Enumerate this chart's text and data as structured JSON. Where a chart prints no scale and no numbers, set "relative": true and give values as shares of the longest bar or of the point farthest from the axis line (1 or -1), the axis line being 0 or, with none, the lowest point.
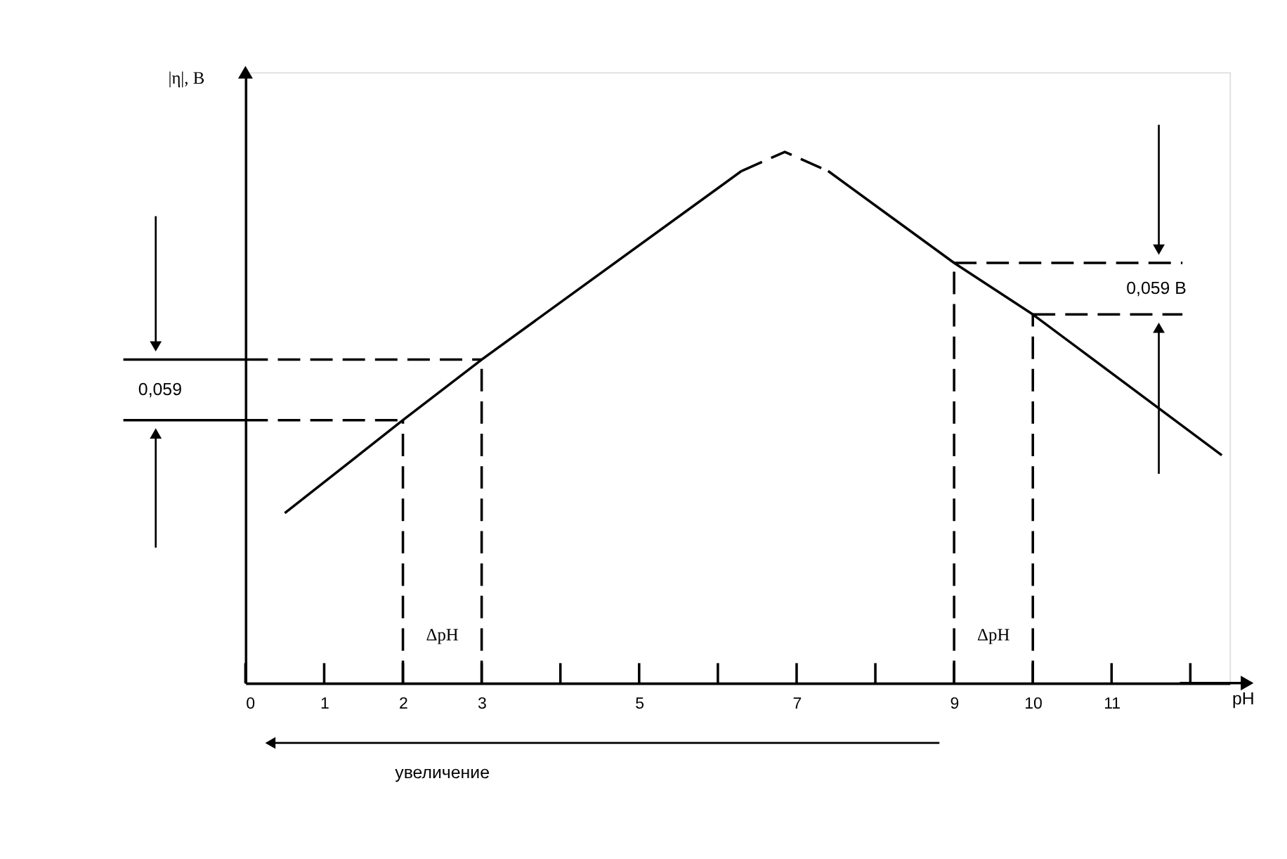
{
  "chart_data": {
    "type": "line",
    "relative": true,
    "xlabel": "pH",
    "ylabel": "|η|, В",
    "xlim": [
      0,
      12.5
    ],
    "xticks": [
      0,
      1,
      2,
      3,
      {
        "value": 4,
        "label": null
      },
      5,
      {
        "value": 6,
        "label": null
      },
      7,
      {
        "value": 8,
        "label": null
      },
      9,
      10,
      11,
      {
        "value": 12,
        "label": null
      }
    ],
    "grid": false,
    "marker": "none",
    "series": [
      {
        "color": "#000000",
        "line_style": "solid",
        "x": [
          0.5,
          2,
          3,
          6.3
        ],
        "values": [
          0.32,
          0.495,
          0.609,
          0.964
        ]
      },
      {
        "color": "#000000",
        "line_style": "dashed",
        "x": [
          6.3,
          6.85,
          7.4
        ],
        "values": [
          0.964,
          1.0,
          0.964
        ]
      },
      {
        "color": "#000000",
        "line_style": "solid",
        "x": [
          7.4,
          9,
          10,
          12.4
        ],
        "values": [
          0.964,
          0.791,
          0.694,
          0.429
        ]
      },
      {
        "color": "#000000",
        "line_style": "dashed",
        "x": [
          0,
          3
        ],
        "values": [
          0.609,
          0.609
        ]
      },
      {
        "color": "#000000",
        "line_style": "dashed",
        "x": [
          0,
          2
        ],
        "values": [
          0.495,
          0.495
        ]
      },
      {
        "color": "#000000",
        "line_style": "dashed",
        "x": [
          2,
          2
        ],
        "values": [
          0,
          0.495
        ]
      },
      {
        "color": "#000000",
        "line_style": "dashed",
        "x": [
          3,
          3
        ],
        "values": [
          0,
          0.609
        ]
      },
      {
        "color": "#000000",
        "line_style": "dashed",
        "x": [
          9,
          11.9
        ],
        "values": [
          0.791,
          0.791
        ]
      },
      {
        "color": "#000000",
        "line_style": "dashed",
        "x": [
          10,
          11.9
        ],
        "values": [
          0.694,
          0.694
        ]
      },
      {
        "color": "#000000",
        "line_style": "dashed",
        "x": [
          9,
          9
        ],
        "values": [
          0,
          0.791
        ]
      },
      {
        "color": "#000000",
        "line_style": "dashed",
        "x": [
          10,
          10
        ],
        "values": [
          0,
          0.694
        ]
      }
    ],
    "annotations": [
      "ΔpH",
      "ΔpH",
      "0,059 В",
      "0,059",
      "увеличение"
    ]
  }
}
